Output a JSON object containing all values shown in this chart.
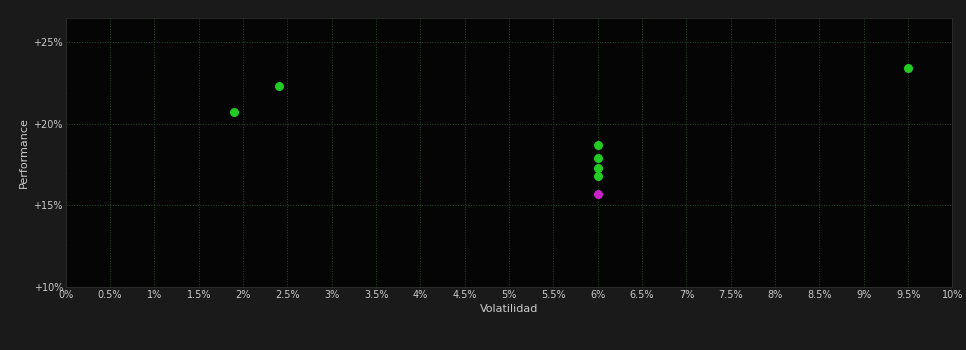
{
  "background_color": "#1a1a1a",
  "plot_bg_color": "#050505",
  "grid_color": "#2a4a2a",
  "text_color": "#cccccc",
  "xlabel": "Volatilidad",
  "ylabel": "Performance",
  "xlim": [
    0.0,
    0.1
  ],
  "ylim": [
    0.1,
    0.265
  ],
  "xticks": [
    0.0,
    0.005,
    0.01,
    0.015,
    0.02,
    0.025,
    0.03,
    0.035,
    0.04,
    0.045,
    0.05,
    0.055,
    0.06,
    0.065,
    0.07,
    0.075,
    0.08,
    0.085,
    0.09,
    0.095,
    0.1
  ],
  "yticks": [
    0.1,
    0.15,
    0.2,
    0.25
  ],
  "ytick_labels": [
    "+10%",
    "+15%",
    "+20%",
    "+25%"
  ],
  "xtick_labels": [
    "0%",
    "0.5%",
    "1%",
    "1.5%",
    "2%",
    "2.5%",
    "3%",
    "3.5%",
    "4%",
    "4.5%",
    "5%",
    "5.5%",
    "6%",
    "6.5%",
    "7%",
    "7.5%",
    "8%",
    "8.5%",
    "9%",
    "9.5%",
    "10%"
  ],
  "points_green": [
    [
      0.019,
      0.207
    ],
    [
      0.024,
      0.223
    ],
    [
      0.06,
      0.187
    ],
    [
      0.06,
      0.179
    ],
    [
      0.06,
      0.173
    ],
    [
      0.06,
      0.168
    ],
    [
      0.095,
      0.234
    ]
  ],
  "points_magenta": [
    [
      0.06,
      0.157
    ]
  ],
  "green_color": "#22cc22",
  "magenta_color": "#cc22cc",
  "point_size": 30,
  "figsize": [
    9.66,
    3.5
  ],
  "dpi": 100
}
